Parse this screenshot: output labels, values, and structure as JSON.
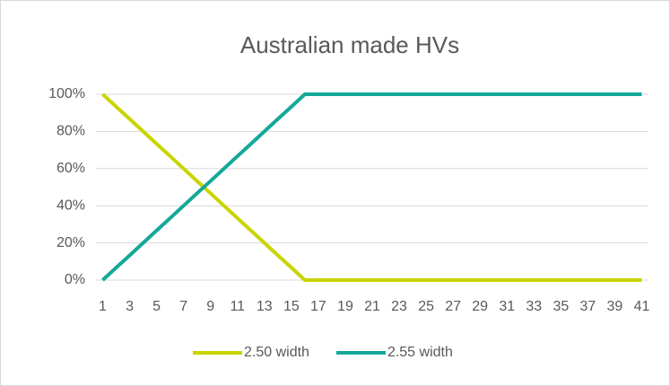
{
  "chart_data": {
    "type": "line",
    "title": "Australian made HVs",
    "categories": [
      1,
      null,
      3,
      null,
      5,
      null,
      7,
      null,
      9,
      null,
      11,
      null,
      13,
      null,
      15,
      null,
      17,
      null,
      19,
      null,
      21,
      null,
      23,
      null,
      25,
      null,
      27,
      null,
      29,
      null,
      31,
      null,
      33,
      null,
      35,
      null,
      37,
      null,
      39,
      null,
      41
    ],
    "series": [
      {
        "name": "2.50 width",
        "color": "#c9d400",
        "values": [
          100,
          93.3,
          86.7,
          80,
          73.3,
          66.7,
          60,
          53.3,
          46.7,
          40,
          33.3,
          26.7,
          20,
          13.3,
          6.7,
          0,
          0,
          0,
          0,
          0,
          0,
          0,
          0,
          0,
          0,
          0,
          0,
          0,
          0,
          0,
          0,
          0,
          0,
          0,
          0,
          0,
          0,
          0,
          0,
          0,
          0
        ]
      },
      {
        "name": "2.55 width",
        "color": "#13a89a",
        "values": [
          0,
          6.7,
          13.3,
          20,
          26.7,
          33.3,
          40,
          46.7,
          53.3,
          60,
          66.7,
          73.3,
          80,
          86.7,
          93.3,
          100,
          100,
          100,
          100,
          100,
          100,
          100,
          100,
          100,
          100,
          100,
          100,
          100,
          100,
          100,
          100,
          100,
          100,
          100,
          100,
          100,
          100,
          100,
          100,
          100,
          100
        ]
      }
    ],
    "ylim": [
      0,
      100
    ],
    "yticks": [
      {
        "value": 0,
        "label": "0%"
      },
      {
        "value": 20,
        "label": "20%"
      },
      {
        "value": 40,
        "label": "40%"
      },
      {
        "value": 60,
        "label": "60%"
      },
      {
        "value": 80,
        "label": "80%"
      },
      {
        "value": 100,
        "label": "100%"
      }
    ],
    "grid": true,
    "legend": "bottom"
  }
}
